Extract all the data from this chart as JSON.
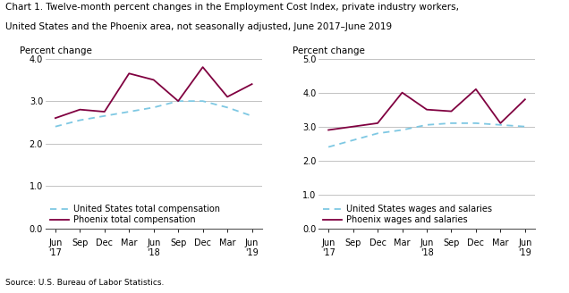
{
  "title_line1": "Chart 1. Twelve-month percent changes in the Employment Cost Index, private industry workers,",
  "title_line2": "United States and the Phoenix area, not seasonally adjusted, June 2017–June 2019",
  "source": "Source: U.S. Bureau of Labor Statistics.",
  "ylabel": "Percent change",
  "chart1": {
    "us_total_comp": [
      2.4,
      2.55,
      2.65,
      2.75,
      2.85,
      3.0,
      3.0,
      2.85,
      2.65
    ],
    "phoenix_total_comp": [
      2.6,
      2.8,
      2.75,
      3.65,
      3.5,
      3.0,
      3.8,
      3.1,
      3.4
    ],
    "ylim": [
      0.0,
      4.0
    ],
    "yticks": [
      0.0,
      1.0,
      2.0,
      3.0,
      4.0
    ],
    "legend1": "United States total compensation",
    "legend2": "Phoenix total compensation"
  },
  "chart2": {
    "us_wages_salaries": [
      2.4,
      2.6,
      2.8,
      2.9,
      3.05,
      3.1,
      3.1,
      3.05,
      3.0
    ],
    "phoenix_wages_salaries": [
      2.9,
      3.0,
      3.1,
      4.0,
      3.5,
      3.45,
      4.1,
      3.1,
      3.8
    ],
    "ylim": [
      0.0,
      5.0
    ],
    "yticks": [
      0.0,
      1.0,
      2.0,
      3.0,
      4.0,
      5.0
    ],
    "legend1": "United States wages and salaries",
    "legend2": "Phoenix wages and salaries"
  },
  "us_line_color": "#7EC8E3",
  "phoenix_line_color": "#800040",
  "line_width": 1.3,
  "bg_color": "#ffffff",
  "grid_color": "#aaaaaa",
  "title_fontsize": 7.5,
  "label_fontsize": 7.5,
  "tick_fontsize": 7.0,
  "legend_fontsize": 7.0,
  "source_fontsize": 6.5
}
